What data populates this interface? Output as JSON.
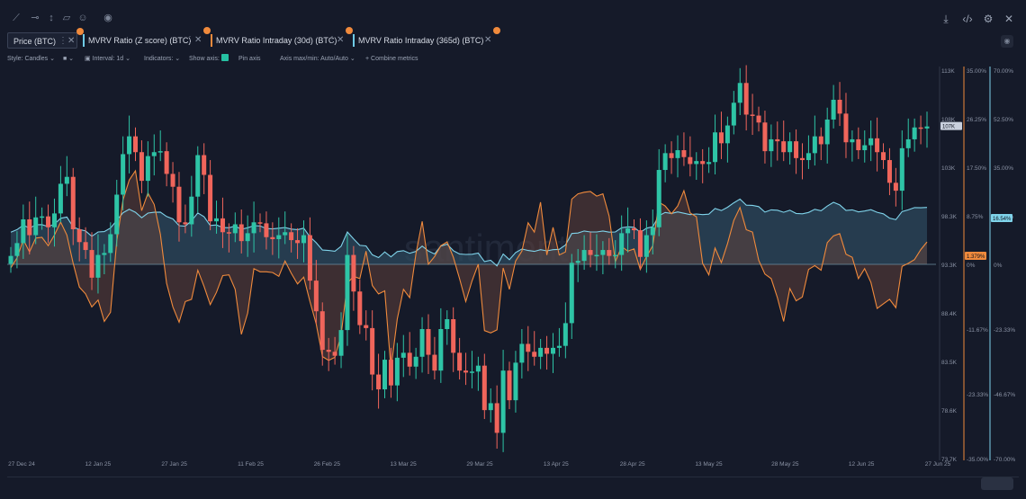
{
  "toolbar": {
    "tools": [
      "line-tool-icon",
      "horizontal-ray-icon",
      "vertical-line-icon",
      "note-icon",
      "emoji-icon",
      "eye-icon"
    ],
    "right_icons": [
      "download-icon",
      "embed-icon",
      "settings-icon",
      "close-icon"
    ]
  },
  "tabs": [
    {
      "label": "Price (BTC)",
      "color": "#9aa3b4"
    },
    {
      "label": "MVRV Ratio (Z score) (BTC)",
      "color": "#6fcbe6"
    },
    {
      "label": "MVRV Ratio Intraday (30d) (BTC)",
      "color": "#f08a3c"
    },
    {
      "label": "MVRV Ratio Intraday (365d) (BTC)",
      "color": "#6fcbe6"
    }
  ],
  "controls": {
    "style": "Style: Candles",
    "interval": "Interval: 1d",
    "indicators": "Indicators:",
    "show_axis": "Show axis:",
    "pin_axis": "Pin axis",
    "axis_maxmin": "Axis max/min: Auto/Auto",
    "combine": "Combine metrics"
  },
  "watermark": "santiment",
  "colors": {
    "up": "#2ec4a6",
    "down": "#f0655b",
    "mvrv30": "#f08a3c",
    "mvrv365": "#7fd3ea",
    "fill365": "#2e4b5f",
    "fill30": "#5e3f3a",
    "bg": "#151a29"
  },
  "chart_data": {
    "type": "line",
    "x_labels": [
      "27 Dec 24",
      "12 Jan 25",
      "27 Jan 25",
      "11 Feb 25",
      "26 Feb 25",
      "13 Mar 25",
      "29 Mar 25",
      "13 Apr 25",
      "28 Apr 25",
      "13 May 25",
      "28 May 25",
      "12 Jun 25",
      "27 Jun 25"
    ],
    "price_axis": {
      "ticks": [
        "113K",
        "108K",
        "103K",
        "98.3K",
        "93.3K",
        "88.4K",
        "83.5K",
        "78.6K",
        "73.7K"
      ],
      "range": [
        73700,
        113000
      ],
      "current": "107K"
    },
    "mvrv30_axis": {
      "ticks": [
        "35.00%",
        "26.25%",
        "17.50%",
        "8.75%",
        "0%",
        "-11.67%",
        "-23.33%",
        "-35.00%"
      ],
      "range": [
        -35,
        35
      ],
      "current": "1.379%"
    },
    "mvrv365_axis": {
      "ticks": [
        "70.00%",
        "52.50%",
        "35.00%",
        "17.50%",
        "0%",
        "-23.33%",
        "-46.67%",
        "-70.00%"
      ],
      "range": [
        -70,
        70
      ],
      "current": "16.54%"
    },
    "series": [
      {
        "name": "Price (BTC)",
        "type": "candles",
        "close": [
          94200,
          95500,
          97900,
          96300,
          98100,
          98200,
          97100,
          98500,
          101500,
          102200,
          96900,
          95600,
          94800,
          92000,
          94300,
          94500,
          96400,
          100400,
          104500,
          106300,
          104700,
          101800,
          104300,
          104700,
          104800,
          102500,
          101200,
          97600,
          97400,
          100200,
          104400,
          102400,
          97700,
          98000,
          96600,
          96500,
          97400,
          95700,
          96500,
          97600,
          97500,
          96100,
          95900,
          96300,
          96600,
          95800,
          95500,
          96300,
          91700,
          88600,
          84700,
          84500,
          84100,
          86700,
          94300,
          90600,
          87200,
          86900,
          82200,
          80700,
          83700,
          81100,
          83900,
          84400,
          83000,
          84000,
          86800,
          84200,
          82600,
          86800,
          87800,
          84400,
          82600,
          82400,
          82500,
          83100,
          78600,
          79300,
          76300,
          82600,
          79600,
          83400,
          85300,
          84500,
          84000,
          84900,
          84300,
          84900,
          85100,
          87400,
          93500,
          93700,
          94800,
          94300,
          94300,
          94800,
          94200,
          94300,
          96500,
          97000,
          96800,
          94100,
          96300,
          97100,
          102900,
          104600,
          104100,
          104900,
          104200,
          103500,
          103800,
          103500,
          103700,
          106700,
          105600,
          107400,
          109700,
          111700,
          108500,
          108400,
          107700,
          104800,
          106000,
          105800,
          104700,
          105800,
          104100,
          103900,
          104600,
          106300,
          105500,
          108000,
          110000,
          108600,
          105700,
          106000,
          104900,
          105400,
          106100,
          104700,
          103900,
          101600,
          100800,
          105100,
          106000,
          107200,
          107100,
          107300
        ]
      },
      {
        "name": "MVRV Ratio Intraday (30d) (BTC)",
        "type": "line",
        "description": "oscillates around 0%, low near -14% in early March, high near +17% in late May"
      },
      {
        "name": "MVRV Ratio Intraday (365d) (BTC)",
        "type": "area",
        "description": "ranges roughly 0% to 35%, current 16.54%"
      }
    ]
  }
}
